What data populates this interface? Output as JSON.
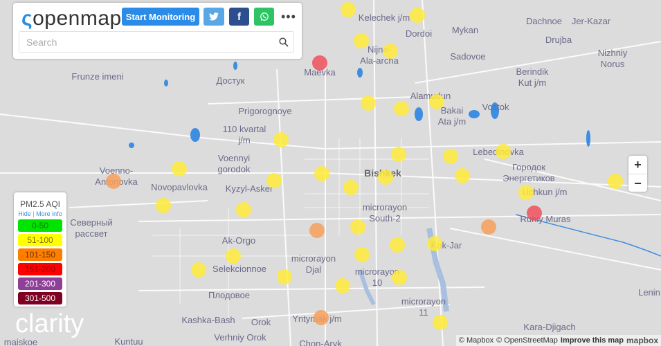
{
  "header": {
    "logo": "openmap",
    "start_monitoring": "Start Monitoring",
    "twitter_icon": "twitter-icon",
    "facebook_label": "f",
    "whatsapp_icon": "whatsapp-icon",
    "more": "•••",
    "search_placeholder": "Search"
  },
  "legend": {
    "title": "PM2.5 AQI",
    "hide": "Hide",
    "more_info": "More info",
    "levels": [
      {
        "label": "0-50",
        "color": "#00e400",
        "text": "#0a7a0a"
      },
      {
        "label": "51-100",
        "color": "#ffff00",
        "text": "#7a6a00"
      },
      {
        "label": "101-150",
        "color": "#ff7e00",
        "text": "#6a3300"
      },
      {
        "label": "151-200",
        "color": "#ff0000",
        "text": "#990000"
      },
      {
        "label": "201-300",
        "color": "#8f3f97",
        "text": "#ffffff"
      },
      {
        "label": "301-500",
        "color": "#7e0023",
        "text": "#ffffff"
      }
    ]
  },
  "map": {
    "places": [
      "Kelechek j/m",
      "Dordoi",
      "Mykan",
      "Dachnoe",
      "Jer-Kazar",
      "Drujba",
      "Nizhniy\nNorus",
      "Nijne-\nAla-archa",
      "Maevka",
      "Sadovoe",
      "Frunze imeni",
      "Достук",
      "Berindik\nKut j/m",
      "Alamudun",
      "Bakai\nAta j/m",
      "Vostok",
      "Prigorognoye",
      "110 kvartal\nj/m",
      "Voennyi\ngorodok",
      "Lebedinovka",
      "Bishkek",
      "Городок\nЭнергетиков",
      "Voenno-\nAntonovka",
      "Novopavlovka",
      "Kyzyl-Asker",
      "Uchkun j/m",
      "microrayon\nSouth-2",
      "Ruhiy Muras",
      "Ak-Orgo",
      "Kok-Jar",
      "Selekcionnoe",
      "microrayon\nDjal",
      "microrayon\n10",
      "Плодовое",
      "microrayon\n11",
      "Lenin",
      "Kashka-Bash",
      "Orok",
      "Yntymak j/m",
      "Kara-Djigach",
      "Verhniy Orok",
      "Kuntuu",
      "Chon-Aryk",
      "Северный\nрассвет",
      "maiskoe"
    ],
    "sensor_levels": [
      "51-100",
      "101-150",
      "151-200"
    ]
  },
  "zoom": {
    "in": "+",
    "out": "−"
  },
  "branding": "clarity",
  "attribution": {
    "mapbox": "© Mapbox",
    "osm": "© OpenStreetMap",
    "improve": "Improve this map",
    "logo": "mapbox"
  }
}
